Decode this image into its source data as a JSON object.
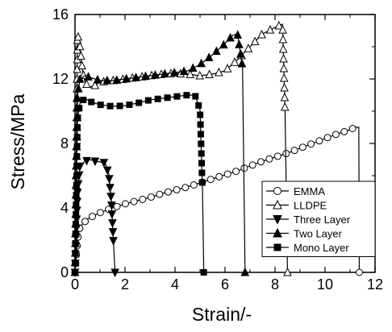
{
  "chart_data": {
    "type": "line",
    "title": "",
    "xlabel": "Strain/-",
    "ylabel": "Stress/MPa",
    "xlim": [
      0,
      12
    ],
    "ylim": [
      0,
      16
    ],
    "xticks": [
      0,
      2,
      4,
      6,
      8,
      10,
      12
    ],
    "yticks": [
      0,
      4,
      8,
      12,
      16
    ],
    "grid": false,
    "legend_position": "bottom-right",
    "series": [
      {
        "name": "EMMA",
        "marker": "open-circle",
        "x": [
          0,
          0.05,
          0.1,
          0.15,
          0.2,
          0.3,
          0.4,
          0.5,
          0.6,
          0.8,
          1.0,
          1.2,
          1.4,
          1.6,
          1.8,
          2.0,
          2.5,
          3.0,
          3.5,
          4.0,
          4.5,
          5.0,
          5.5,
          6.0,
          6.5,
          7.0,
          7.5,
          8.0,
          8.5,
          9.0,
          9.5,
          10.0,
          10.5,
          11.0,
          11.2,
          11.35,
          11.37
        ],
        "y": [
          0,
          1.0,
          2.0,
          2.5,
          2.8,
          3.0,
          3.15,
          3.3,
          3.4,
          3.55,
          3.7,
          3.82,
          3.95,
          4.05,
          4.15,
          4.25,
          4.45,
          4.65,
          4.9,
          5.1,
          5.3,
          5.55,
          5.8,
          6.05,
          6.3,
          6.6,
          6.9,
          7.15,
          7.4,
          7.7,
          8.0,
          8.3,
          8.6,
          8.85,
          9.0,
          9.0,
          0
        ]
      },
      {
        "name": "LLDPE",
        "marker": "open-triangle-up",
        "x": [
          0,
          0.1,
          0.2,
          0.3,
          0.4,
          0.5,
          0.6,
          0.8,
          1.0,
          1.5,
          2.0,
          2.5,
          3.0,
          3.5,
          4.0,
          4.5,
          5.0,
          5.5,
          6.0,
          6.5,
          7.0,
          7.5,
          8.0,
          8.3,
          8.4,
          8.5
        ],
        "y": [
          0,
          14.8,
          14.0,
          12.5,
          11.8,
          11.6,
          11.5,
          11.6,
          11.8,
          11.9,
          12.0,
          12.1,
          12.2,
          12.3,
          12.35,
          12.3,
          12.2,
          12.3,
          12.5,
          13.2,
          14.0,
          14.8,
          15.2,
          15.4,
          10.0,
          0
        ]
      },
      {
        "name": "Three Layer",
        "marker": "filled-triangle-down",
        "x": [
          0,
          0.1,
          0.2,
          0.4,
          0.6,
          0.8,
          1.0,
          1.2,
          1.35,
          1.45,
          1.55,
          1.6
        ],
        "y": [
          0,
          5.0,
          6.6,
          6.9,
          7.0,
          6.9,
          6.85,
          6.8,
          6.1,
          4.5,
          1.5,
          0
        ]
      },
      {
        "name": "Two Layer",
        "marker": "filled-triangle-up",
        "x": [
          0,
          0.1,
          0.2,
          0.4,
          0.6,
          0.8,
          1.0,
          1.5,
          2.0,
          2.5,
          3.0,
          3.5,
          4.0,
          4.5,
          5.0,
          5.5,
          6.0,
          6.3,
          6.5,
          6.7,
          6.8
        ],
        "y": [
          0,
          11.0,
          12.0,
          12.2,
          12.1,
          12.0,
          11.9,
          11.9,
          12.0,
          12.1,
          12.2,
          12.3,
          12.4,
          12.5,
          12.9,
          13.5,
          14.2,
          14.7,
          14.8,
          12.7,
          0
        ]
      },
      {
        "name": "Mono Layer",
        "marker": "filled-square",
        "x": [
          0,
          0.1,
          0.2,
          0.4,
          0.6,
          0.8,
          1.0,
          1.5,
          2.0,
          2.5,
          3.0,
          3.5,
          4.0,
          4.5,
          4.8,
          5.0,
          5.1,
          5.15
        ],
        "y": [
          0,
          9.5,
          10.5,
          10.8,
          10.6,
          10.5,
          10.4,
          10.3,
          10.35,
          10.5,
          10.7,
          10.8,
          10.9,
          11.0,
          11.0,
          10.1,
          5.0,
          0
        ]
      }
    ]
  }
}
